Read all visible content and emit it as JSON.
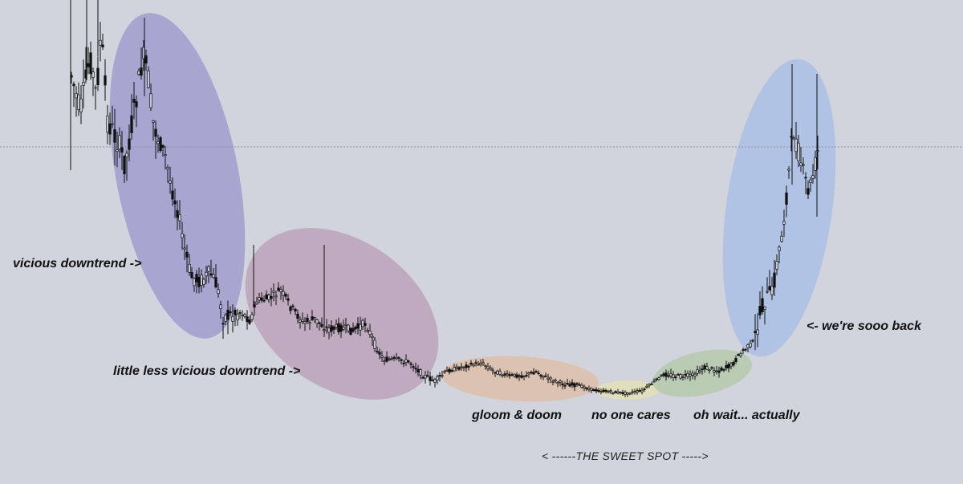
{
  "chart_data": {
    "type": "candlestick",
    "background": "#d1d4dc",
    "candle_color": "#111111",
    "price_line_color": "#8a8f9c",
    "phases": [
      {
        "name": "vicious downtrend",
        "label": "vicious downtrend ->",
        "color": "#8e88c9"
      },
      {
        "name": "little less vicious downtrend",
        "label": "little less vicious downtrend ->",
        "color": "#b590ad"
      },
      {
        "name": "gloom & doom",
        "label": "gloom & doom",
        "color": "#e2b896"
      },
      {
        "name": "no one cares",
        "label": "no one cares",
        "color": "#e8e3a6"
      },
      {
        "name": "oh wait... actually",
        "label": "oh wait... actually",
        "color": "#a9c59a"
      },
      {
        "name": "we're sooo back",
        "label": "<- we're sooo back",
        "color": "#9bb8e8"
      }
    ],
    "annotation": "< ------THE SWEET SPOT ----->"
  }
}
